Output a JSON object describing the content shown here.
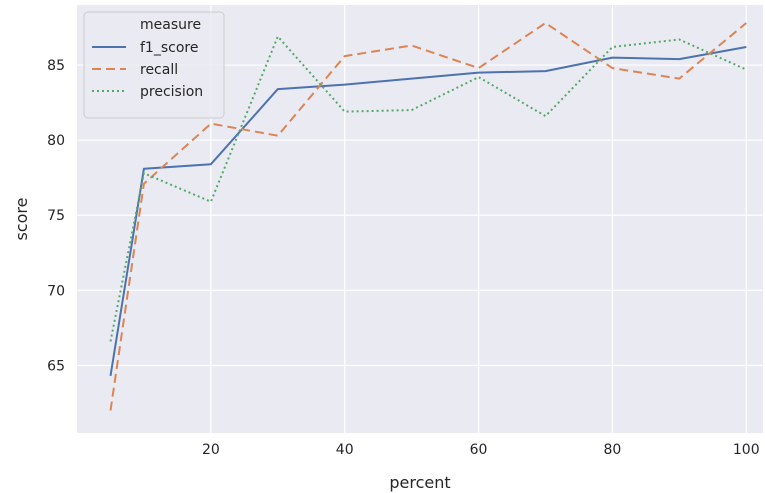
{
  "chart_data": {
    "type": "line",
    "xlabel": "percent",
    "ylabel": "score",
    "xlim": [
      0,
      102.5
    ],
    "ylim": [
      60.5,
      89.0
    ],
    "xticks": [
      20,
      40,
      60,
      80,
      100
    ],
    "yticks": [
      65,
      70,
      75,
      80,
      85
    ],
    "grid": true,
    "legend": {
      "title": "measure",
      "placement": "top-left"
    },
    "x": [
      5,
      10,
      20,
      30,
      40,
      50,
      60,
      70,
      80,
      90,
      100
    ],
    "series": [
      {
        "name": "f1_score",
        "color": "#4c72b0",
        "style": "solid",
        "values": [
          64.3,
          78.1,
          78.4,
          83.4,
          83.7,
          84.1,
          84.5,
          84.6,
          85.5,
          85.4,
          86.2
        ]
      },
      {
        "name": "recall",
        "color": "#dd8452",
        "style": "dashed",
        "values": [
          62.0,
          77.1,
          81.1,
          80.3,
          85.6,
          86.3,
          84.8,
          87.8,
          84.8,
          84.1,
          87.8
        ]
      },
      {
        "name": "precision",
        "color": "#55a868",
        "style": "dotted",
        "values": [
          66.6,
          77.8,
          75.9,
          86.9,
          81.9,
          82.0,
          84.2,
          81.6,
          86.2,
          86.7,
          84.7
        ]
      }
    ]
  }
}
